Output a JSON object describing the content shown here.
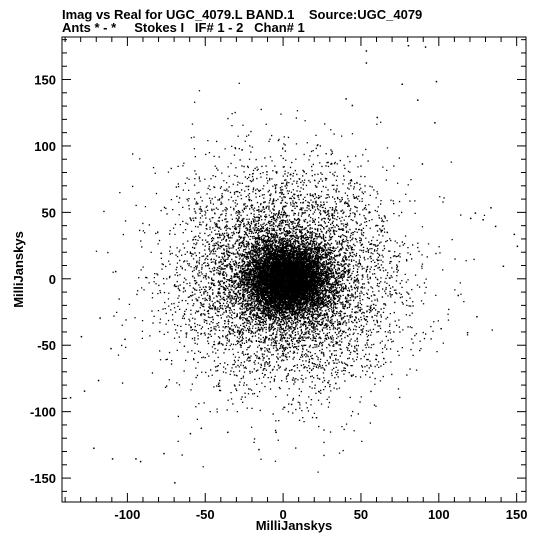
{
  "chart_data": {
    "type": "scatter",
    "title": "Imag vs Real for UGC_4079.L BAND.1    Source:UGC_4079",
    "subtitle": "Ants * - *     Stokes I   IF# 1 - 2   Chan# 1",
    "xlabel": "MilliJanskys",
    "ylabel": "MilliJanskys",
    "xlim": [
      -142,
      156
    ],
    "ylim": [
      -168,
      182
    ],
    "xticks": [
      -100,
      -50,
      0,
      50,
      100,
      150
    ],
    "yticks": [
      -150,
      -100,
      -50,
      0,
      50,
      100,
      150
    ],
    "grid": false,
    "marker_color": "#000000",
    "series": [
      {
        "points_note": "dense Gaussian-like cloud centered near (2, 0)",
        "center": [
          2,
          0
        ],
        "core_sigma": [
          13,
          13
        ],
        "halo_sigma": [
          35,
          40
        ],
        "outliers": [
          [
            -137,
            -89
          ],
          [
            -122,
            -127
          ],
          [
            -128,
            -84
          ],
          [
            -119,
            -76
          ],
          [
            -110,
            -135
          ],
          [
            -95,
            -135
          ],
          [
            -92,
            -137
          ],
          [
            -77,
            -131
          ],
          [
            -70,
            -153
          ],
          [
            -60,
            -116
          ],
          [
            -111,
            -52
          ],
          [
            -102,
            -45
          ],
          [
            -118,
            -29
          ],
          [
            -130,
            -43
          ],
          [
            -108,
            6
          ],
          [
            150,
            25
          ],
          [
            148,
            34
          ],
          [
            133,
            54
          ],
          [
            128,
            45
          ],
          [
            141,
            10
          ],
          [
            123,
            50
          ],
          [
            112,
            -12
          ],
          [
            118,
            -40
          ],
          [
            101,
            -37
          ],
          [
            124,
            -28
          ],
          [
            53,
            172
          ],
          [
            80,
            176
          ],
          [
            91,
            175
          ],
          [
            98,
            149
          ],
          [
            76,
            147
          ],
          [
            86,
            135
          ],
          [
            53,
            163
          ],
          [
            40,
            136
          ],
          [
            44,
            131
          ],
          [
            97,
            118
          ],
          [
            60,
            122
          ],
          [
            89,
            87
          ],
          [
            120,
            46
          ],
          [
            136,
            40
          ],
          [
            -36,
            -115
          ],
          [
            -16,
            -128
          ],
          [
            -5,
            -115
          ],
          [
            -53,
            -112
          ],
          [
            5,
            -94
          ],
          [
            21,
            -104
          ]
        ]
      }
    ]
  },
  "header": {
    "line1": "Imag vs Real for UGC_4079.L BAND.1    Source:UGC_4079",
    "line2": "Ants * - *     Stokes I   IF# 1 - 2   Chan# 1"
  },
  "axes": {
    "x_label": "MilliJanskys",
    "y_label": "MilliJanskys",
    "x_tick_labels": [
      "-100",
      "-50",
      "0",
      "50",
      "100",
      "150"
    ],
    "y_tick_labels": [
      "-150",
      "-100",
      "-50",
      "0",
      "50",
      "100",
      "150"
    ]
  }
}
